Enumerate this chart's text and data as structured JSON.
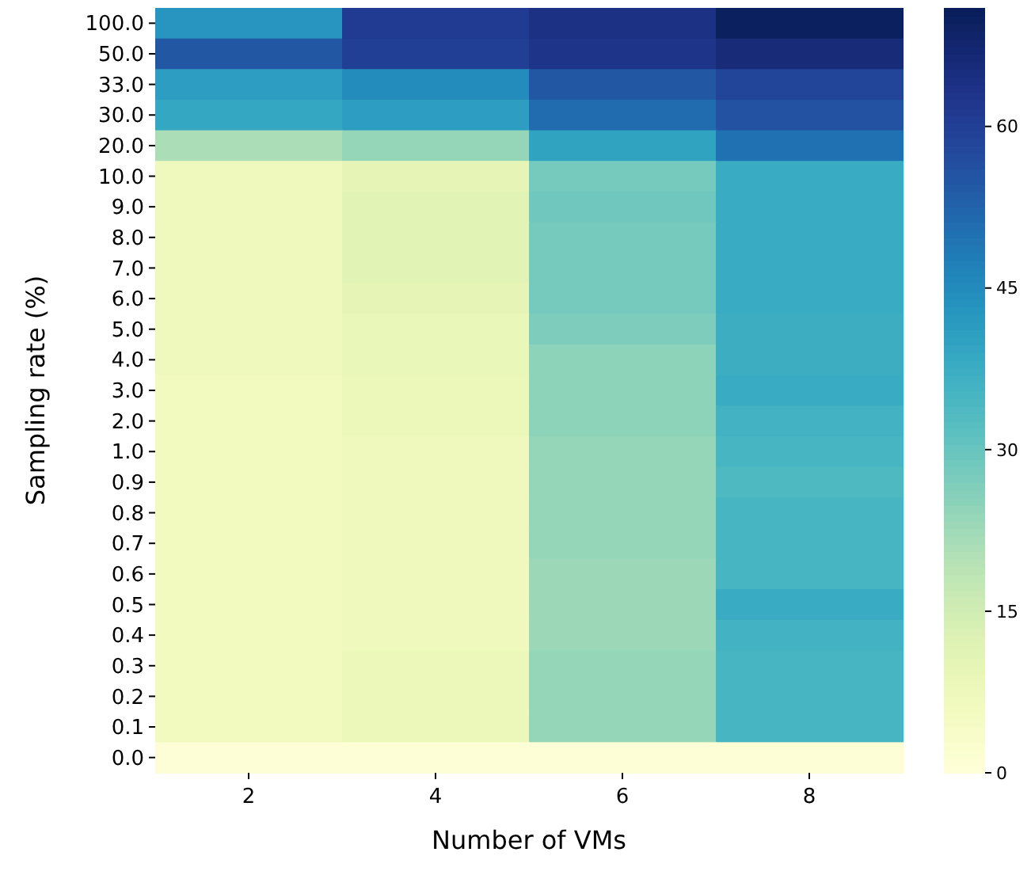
{
  "chart_data": {
    "type": "heatmap",
    "xlabel": "Number of VMs",
    "ylabel": "Sampling rate (%)",
    "categories": [
      "2",
      "4",
      "6",
      "8"
    ],
    "y_categories": [
      "100.0",
      "50.0",
      "33.0",
      "30.0",
      "20.0",
      "10.0",
      "9.0",
      "8.0",
      "7.0",
      "6.0",
      "5.0",
      "4.0",
      "3.0",
      "2.0",
      "1.0",
      "0.9",
      "0.8",
      "0.7",
      "0.6",
      "0.5",
      "0.4",
      "0.3",
      "0.2",
      "0.1",
      "0.0"
    ],
    "cells": [
      [
        43,
        61,
        64,
        70
      ],
      [
        55,
        60,
        63,
        66
      ],
      [
        41,
        45,
        55,
        59
      ],
      [
        39,
        41,
        51,
        56
      ],
      [
        21,
        24,
        40,
        50
      ],
      [
        7,
        10,
        28,
        38
      ],
      [
        7,
        11,
        29,
        38
      ],
      [
        7,
        11,
        28,
        38
      ],
      [
        7,
        11,
        28,
        38
      ],
      [
        7,
        10,
        28,
        38
      ],
      [
        7,
        9,
        27,
        37
      ],
      [
        7,
        9,
        25,
        37
      ],
      [
        6,
        8,
        25,
        38
      ],
      [
        6,
        8,
        25,
        36
      ],
      [
        6,
        7,
        24,
        35
      ],
      [
        6,
        7,
        24,
        34
      ],
      [
        6,
        7,
        24,
        35
      ],
      [
        6,
        7,
        24,
        35
      ],
      [
        6,
        7,
        23,
        35
      ],
      [
        6,
        7,
        23,
        38
      ],
      [
        6,
        7,
        23,
        36
      ],
      [
        6,
        8,
        24,
        35
      ],
      [
        6,
        8,
        24,
        35
      ],
      [
        6,
        8,
        24,
        35
      ],
      [
        1,
        1,
        1,
        1
      ]
    ],
    "clim": [
      0,
      71
    ],
    "cticks": [
      0,
      15,
      30,
      45,
      60
    ]
  }
}
